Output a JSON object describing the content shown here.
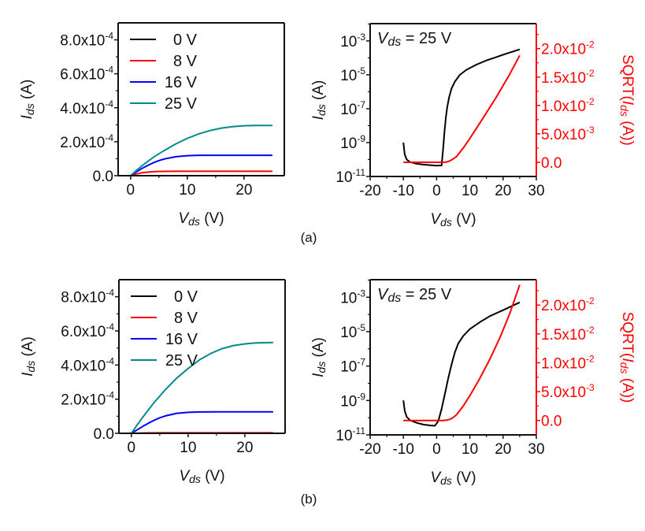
{
  "figure": {
    "panel_labels": [
      "(a)",
      "(b)"
    ]
  },
  "chart_data": [
    {
      "id": "a-output",
      "row": "a",
      "type": "line",
      "title": "",
      "xlabel": "Vds (V)",
      "ylabel": "Ids (A)",
      "xlim": [
        -2.2,
        27.1
      ],
      "ylim": [
        0,
        0.0009
      ],
      "xticks": [
        0,
        10,
        20
      ],
      "xtick_labels": [
        "0",
        "10",
        "20"
      ],
      "yticks": [
        0,
        0.0002,
        0.0004,
        0.0006,
        0.0008
      ],
      "ytick_labels": [
        {
          "mant": "0.0",
          "exp": ""
        },
        {
          "mant": "2.0x10",
          "exp": "-4"
        },
        {
          "mant": "4.0x10",
          "exp": "-4"
        },
        {
          "mant": "6.0x10",
          "exp": "-4"
        },
        {
          "mant": "8.0x10",
          "exp": "-4"
        }
      ],
      "legend": {
        "position": "top-left",
        "entries": [
          "0 V",
          "8 V",
          "16 V",
          "25 V"
        ]
      },
      "series": [
        {
          "name": "0 V",
          "color": "#000000",
          "x": [
            0,
            25
          ],
          "y": [
            0,
            0
          ]
        },
        {
          "name": "8 V",
          "color": "#ff0000",
          "x": [
            0,
            1,
            2,
            3,
            4,
            5,
            6,
            8,
            10,
            15,
            20,
            25
          ],
          "y": [
            0,
            1e-05,
            1.7e-05,
            2.1e-05,
            2.35e-05,
            2.5e-05,
            2.55e-05,
            2.6e-05,
            2.6e-05,
            2.6e-05,
            2.6e-05,
            2.6e-05
          ]
        },
        {
          "name": "16 V",
          "color": "#0000ff",
          "x": [
            0,
            1,
            2,
            3,
            4,
            5,
            6,
            8,
            10,
            12,
            15,
            20,
            25
          ],
          "y": [
            0,
            2.2e-05,
            4.2e-05,
            6e-05,
            7.6e-05,
            8.9e-05,
            9.9e-05,
            0.000112,
            0.000118,
            0.00012,
            0.00012,
            0.00012,
            0.00012
          ]
        },
        {
          "name": "25 V",
          "color": "#008b8b",
          "x": [
            0,
            1,
            2,
            4,
            6,
            8,
            10,
            12,
            14,
            16,
            18,
            20,
            22,
            25
          ],
          "y": [
            0,
            3e-05,
            5.8e-05,
            0.000108,
            0.00015,
            0.000188,
            0.00022,
            0.000246,
            0.000266,
            0.00028,
            0.000289,
            0.000294,
            0.000296,
            0.000296
          ]
        }
      ]
    },
    {
      "id": "a-transfer",
      "row": "a",
      "type": "line",
      "title": "",
      "annotation": {
        "var": "V",
        "sub": "ds",
        "rest": " = 25 V"
      },
      "xlabel": "Vds (V)",
      "ylabel": "Ids (A)",
      "y2label": "SQRT(Ids (A))",
      "xlim": [
        -20,
        30
      ],
      "ylim_log10": [
        -11,
        -1.98
      ],
      "y2lim": [
        -0.0025,
        0.0244
      ],
      "xticks": [
        -20,
        -10,
        0,
        10,
        20,
        30
      ],
      "xtick_labels": [
        "-20",
        "-10",
        "0",
        "10",
        "20",
        "30"
      ],
      "yticks_log10": [
        -11,
        -9,
        -7,
        -5,
        -3
      ],
      "ytick_labels": [
        {
          "mant": "10",
          "exp": "-11"
        },
        {
          "mant": "10",
          "exp": "-9"
        },
        {
          "mant": "10",
          "exp": "-7"
        },
        {
          "mant": "10",
          "exp": "-5"
        },
        {
          "mant": "10",
          "exp": "-3"
        }
      ],
      "y2ticks": [
        0,
        0.005,
        0.01,
        0.015,
        0.02
      ],
      "y2tick_labels": [
        {
          "mant": "0.0",
          "exp": ""
        },
        {
          "mant": "5.0x10",
          "exp": "-3"
        },
        {
          "mant": "1.0x10",
          "exp": "-2"
        },
        {
          "mant": "1.5x10",
          "exp": "-2"
        },
        {
          "mant": "2.0x10",
          "exp": "-2"
        }
      ],
      "series": [
        {
          "name": "Ids (log)",
          "axis": "left",
          "color": "#000000",
          "x": [
            -10,
            -9.6,
            -9,
            -8,
            -6,
            -4,
            -2,
            0,
            1.5,
            2.0,
            2.4,
            2.8,
            3.2,
            3.8,
            4.5,
            5.5,
            7,
            9,
            12,
            15,
            18,
            21,
            25
          ],
          "log10y": [
            -9.0,
            -9.7,
            -10.0,
            -10.15,
            -10.25,
            -10.3,
            -10.33,
            -10.36,
            -10.35,
            -9.3,
            -8.3,
            -7.5,
            -6.9,
            -6.3,
            -5.8,
            -5.4,
            -5.0,
            -4.7,
            -4.4,
            -4.15,
            -3.95,
            -3.75,
            -3.5
          ]
        },
        {
          "name": "SQRT(Ids)",
          "axis": "right",
          "color": "#ff0000",
          "x": [
            -10,
            -5,
            0,
            2,
            3,
            4,
            5,
            6,
            8,
            10,
            14,
            18,
            22,
            25
          ],
          "y": [
            0,
            0,
            0,
            0,
            5e-05,
            0.00025,
            0.0006,
            0.001,
            0.0025,
            0.0042,
            0.0078,
            0.0115,
            0.0155,
            0.0188
          ]
        }
      ]
    },
    {
      "id": "b-output",
      "row": "b",
      "type": "line",
      "title": "",
      "xlabel": "Vds (V)",
      "ylabel": "Ids (A)",
      "xlim": [
        -2.2,
        27.1
      ],
      "ylim": [
        0,
        0.0009
      ],
      "xticks": [
        0,
        10,
        20
      ],
      "xtick_labels": [
        "0",
        "10",
        "20"
      ],
      "yticks": [
        0,
        0.0002,
        0.0004,
        0.0006,
        0.0008
      ],
      "ytick_labels": [
        {
          "mant": "0.0",
          "exp": ""
        },
        {
          "mant": "2.0x10",
          "exp": "-4"
        },
        {
          "mant": "4.0x10",
          "exp": "-4"
        },
        {
          "mant": "6.0x10",
          "exp": "-4"
        },
        {
          "mant": "8.0x10",
          "exp": "-4"
        }
      ],
      "legend": {
        "position": "top-left",
        "entries": [
          "0 V",
          "8 V",
          "16 V",
          "25 V"
        ]
      },
      "series": [
        {
          "name": "0 V",
          "color": "#000000",
          "x": [
            0,
            25
          ],
          "y": [
            0,
            0
          ]
        },
        {
          "name": "8 V",
          "color": "#ff0000",
          "x": [
            0,
            2,
            5,
            25
          ],
          "y": [
            0,
            2e-06,
            3e-06,
            3e-06
          ]
        },
        {
          "name": "16 V",
          "color": "#0000ff",
          "x": [
            0,
            1,
            2,
            3,
            4,
            5,
            6,
            8,
            10,
            12,
            15,
            20,
            25
          ],
          "y": [
            0,
            2e-05,
            4e-05,
            5.9e-05,
            7.6e-05,
            9.1e-05,
            0.000102,
            0.000117,
            0.000123,
            0.000125,
            0.000126,
            0.000126,
            0.000126
          ]
        },
        {
          "name": "25 V",
          "color": "#008b8b",
          "x": [
            0,
            1,
            2,
            4,
            6,
            8,
            10,
            12,
            14,
            16,
            18,
            20,
            22,
            25
          ],
          "y": [
            0,
            4.8e-05,
            9.4e-05,
            0.00018,
            0.000256,
            0.000324,
            0.00038,
            0.00043,
            0.000468,
            0.000496,
            0.000514,
            0.000524,
            0.00053,
            0.000532
          ]
        }
      ]
    },
    {
      "id": "b-transfer",
      "row": "b",
      "type": "line",
      "title": "",
      "annotation": {
        "var": "V",
        "sub": "ds",
        "rest": " = 25 V"
      },
      "xlabel": "Vds (V)",
      "ylabel": "Ids (A)",
      "y2label": "SQRT(Ids (A))",
      "xlim": [
        -20,
        30
      ],
      "ylim_log10": [
        -11,
        -1.98
      ],
      "y2lim": [
        -0.0025,
        0.0244
      ],
      "xticks": [
        -20,
        -10,
        0,
        10,
        20,
        30
      ],
      "xtick_labels": [
        "-20",
        "-10",
        "0",
        "10",
        "20",
        "30"
      ],
      "yticks_log10": [
        -11,
        -9,
        -7,
        -5,
        -3
      ],
      "ytick_labels": [
        {
          "mant": "10",
          "exp": "-11"
        },
        {
          "mant": "10",
          "exp": "-9"
        },
        {
          "mant": "10",
          "exp": "-7"
        },
        {
          "mant": "10",
          "exp": "-5"
        },
        {
          "mant": "10",
          "exp": "-3"
        }
      ],
      "y2ticks": [
        0,
        0.005,
        0.01,
        0.015,
        0.02
      ],
      "y2tick_labels": [
        {
          "mant": "0.0",
          "exp": ""
        },
        {
          "mant": "5.0x10",
          "exp": "-3"
        },
        {
          "mant": "1.0x10",
          "exp": "-2"
        },
        {
          "mant": "1.5x10",
          "exp": "-2"
        },
        {
          "mant": "2.0x10",
          "exp": "-2"
        }
      ],
      "series": [
        {
          "name": "Ids (log)",
          "axis": "left",
          "color": "#000000",
          "x": [
            -10,
            -9.6,
            -9,
            -8,
            -6,
            -4,
            -2,
            -0.5,
            0.5,
            1.5,
            2.5,
            3.5,
            4.5,
            5.5,
            6.5,
            8,
            10,
            13,
            16,
            20,
            25
          ],
          "log10y": [
            -9.0,
            -9.6,
            -9.95,
            -10.15,
            -10.3,
            -10.4,
            -10.45,
            -10.47,
            -10.2,
            -9.5,
            -8.6,
            -7.7,
            -6.9,
            -6.2,
            -5.7,
            -5.25,
            -4.85,
            -4.45,
            -4.1,
            -3.75,
            -3.3
          ]
        },
        {
          "name": "SQRT(Ids)",
          "axis": "right",
          "color": "#ff0000",
          "x": [
            -10,
            -5,
            0,
            2,
            3,
            4,
            5,
            6,
            8,
            10,
            13,
            16,
            19,
            22,
            25
          ],
          "y": [
            0,
            0,
            0,
            0,
            5e-05,
            0.0002,
            0.0005,
            0.001,
            0.0025,
            0.0043,
            0.0073,
            0.0106,
            0.0143,
            0.0185,
            0.0235
          ]
        }
      ]
    }
  ]
}
